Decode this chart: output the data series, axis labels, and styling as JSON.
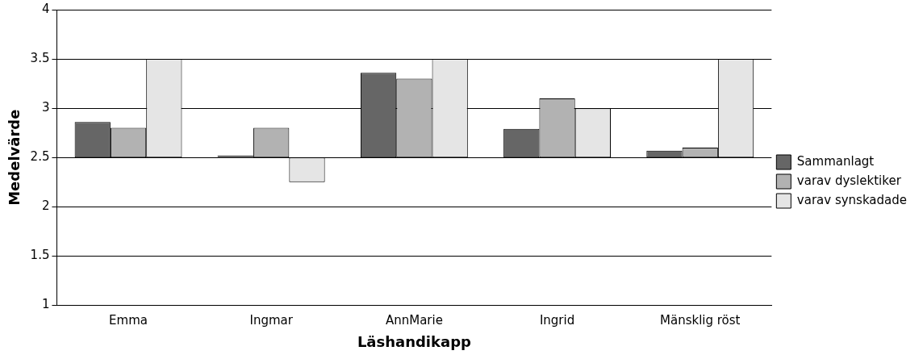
{
  "chart_data": {
    "type": "bar",
    "xlabel": "Läshandikapp",
    "ylabel": "Medelvärde",
    "categories": [
      "Emma",
      "Ingmar",
      "AnnMarie",
      "Ingrid",
      "Mänsklig röst"
    ],
    "series": [
      {
        "name": "Sammanlagt",
        "color": "#666666",
        "base": [
          2.5,
          2.5,
          2.5,
          2.5,
          2.5
        ],
        "values": [
          0.36,
          0.02,
          0.86,
          0.29,
          0.07
        ]
      },
      {
        "name": "varav dyslektiker",
        "color": "#b2b2b2",
        "base": [
          2.5,
          2.5,
          2.5,
          2.5,
          2.5
        ],
        "values": [
          0.3,
          0.3,
          0.8,
          0.6,
          0.1
        ]
      },
      {
        "name": "varav synskadade",
        "color": "#e5e5e5",
        "base": [
          2.5,
          2.5,
          2.5,
          2.5,
          2.5
        ],
        "values": [
          1,
          -0.25,
          1,
          0.5,
          1
        ]
      }
    ],
    "ylim": [
      1,
      4
    ],
    "yticks": [
      1,
      1.5,
      2,
      2.5,
      3,
      3.5,
      4
    ],
    "grid": "y",
    "legend": "right"
  }
}
